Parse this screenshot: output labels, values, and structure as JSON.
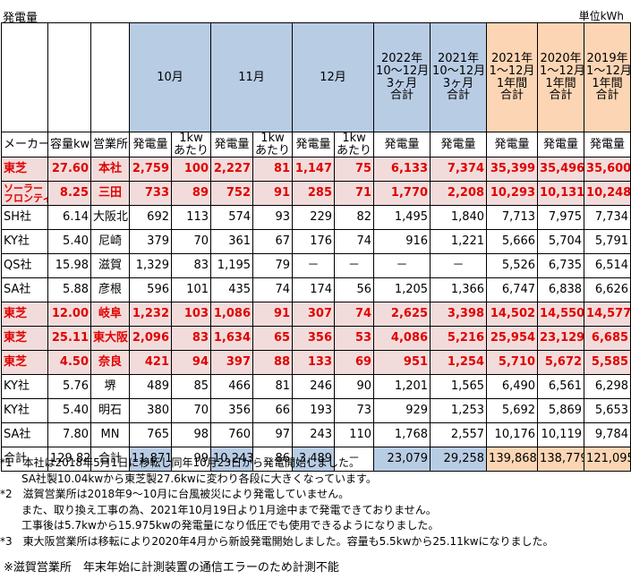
{
  "title": "発電量",
  "unit": "単位kWh",
  "header": {
    "col_oct": "10月",
    "col_nov": "11月",
    "col_dec": "12月",
    "col_2022q": [
      "2022年",
      "10～12月",
      "3ヶ月",
      "合計"
    ],
    "col_2021q": [
      "2021年",
      "10～12月",
      "3ヶ月",
      "合計"
    ],
    "col_2021y": [
      "2021年",
      "1～12月",
      "1年間",
      "合計"
    ],
    "col_2020y": [
      "2020年",
      "1～12月",
      "1年間",
      "合計"
    ],
    "col_2019y": [
      "2019年",
      "1～12月",
      "1年間",
      "合計"
    ]
  },
  "sub": {
    "maker": "メーカー",
    "capacity": "容量kw",
    "office": "営業所",
    "gen": "発電量",
    "per_kw": [
      "1kw",
      "あたり"
    ]
  },
  "rows": [
    {
      "maker": "東芝",
      "maker2": "",
      "capacity": "27.60",
      "office": "本社",
      "oct": "2,759",
      "oct_kw": "100",
      "nov": "2,227",
      "nov_kw": "81",
      "dec": "1,147",
      "dec_kw": "75",
      "q2022": "6,133",
      "q2021": "7,374",
      "y2021": "35,399",
      "y2020": "35,496",
      "y2019": "35,600",
      "hl": true
    },
    {
      "maker": "ソーラー",
      "maker2": "フロンティア",
      "capacity": "8.25",
      "office": "三田",
      "oct": "733",
      "oct_kw": "89",
      "nov": "752",
      "nov_kw": "91",
      "dec": "285",
      "dec_kw": "71",
      "q2022": "1,770",
      "q2021": "2,208",
      "y2021": "10,293",
      "y2020": "10,131",
      "y2019": "10,248",
      "hl": true
    },
    {
      "maker": "SH社",
      "maker2": "",
      "capacity": "6.14",
      "office": "大阪北",
      "oct": "692",
      "oct_kw": "113",
      "nov": "574",
      "nov_kw": "93",
      "dec": "229",
      "dec_kw": "82",
      "q2022": "1,495",
      "q2021": "1,840",
      "y2021": "7,713",
      "y2020": "7,975",
      "y2019": "7,734",
      "hl": false
    },
    {
      "maker": "KY社",
      "maker2": "",
      "capacity": "5.40",
      "office": "尼崎",
      "oct": "379",
      "oct_kw": "70",
      "nov": "361",
      "nov_kw": "67",
      "dec": "176",
      "dec_kw": "74",
      "q2022": "916",
      "q2021": "1,221",
      "y2021": "5,666",
      "y2020": "5,704",
      "y2019": "5,791",
      "hl": false
    },
    {
      "maker": "QS社",
      "maker2": "",
      "capacity": "15.98",
      "office": "滋賀",
      "oct": "1,329",
      "oct_kw": "83",
      "nov": "1,195",
      "nov_kw": "79",
      "dec": "－",
      "dec_kw": "－",
      "q2022": "－",
      "q2021": "－",
      "y2021": "5,526",
      "y2020": "6,735",
      "y2019": "6,514",
      "hl": false
    },
    {
      "maker": "SA社",
      "maker2": "",
      "capacity": "5.88",
      "office": "彦根",
      "oct": "596",
      "oct_kw": "101",
      "nov": "435",
      "nov_kw": "74",
      "dec": "174",
      "dec_kw": "56",
      "q2022": "1,205",
      "q2021": "1,366",
      "y2021": "6,747",
      "y2020": "6,838",
      "y2019": "6,626",
      "hl": false
    },
    {
      "maker": "東芝",
      "maker2": "",
      "capacity": "12.00",
      "office": "岐阜",
      "oct": "1,232",
      "oct_kw": "103",
      "nov": "1,086",
      "nov_kw": "91",
      "dec": "307",
      "dec_kw": "74",
      "q2022": "2,625",
      "q2021": "3,398",
      "y2021": "14,502",
      "y2020": "14,550",
      "y2019": "14,577",
      "hl": true
    },
    {
      "maker": "東芝",
      "maker2": "",
      "capacity": "25.11",
      "office": "東大阪",
      "oct": "2,096",
      "oct_kw": "83",
      "nov": "1,634",
      "nov_kw": "65",
      "dec": "356",
      "dec_kw": "53",
      "q2022": "4,086",
      "q2021": "5,216",
      "y2021": "25,954",
      "y2020": "23,129",
      "y2019": "6,685",
      "hl": true
    },
    {
      "maker": "東芝",
      "maker2": "",
      "capacity": "4.50",
      "office": "奈良",
      "oct": "421",
      "oct_kw": "94",
      "nov": "397",
      "nov_kw": "88",
      "dec": "133",
      "dec_kw": "69",
      "q2022": "951",
      "q2021": "1,254",
      "y2021": "5,710",
      "y2020": "5,672",
      "y2019": "5,585",
      "hl": true
    },
    {
      "maker": "KY社",
      "maker2": "",
      "capacity": "5.76",
      "office": "堺",
      "oct": "489",
      "oct_kw": "85",
      "nov": "466",
      "nov_kw": "81",
      "dec": "246",
      "dec_kw": "90",
      "q2022": "1,201",
      "q2021": "1,565",
      "y2021": "6,490",
      "y2020": "6,561",
      "y2019": "6,298",
      "hl": false
    },
    {
      "maker": "KY社",
      "maker2": "",
      "capacity": "5.40",
      "office": "明石",
      "oct": "380",
      "oct_kw": "70",
      "nov": "356",
      "nov_kw": "66",
      "dec": "193",
      "dec_kw": "73",
      "q2022": "929",
      "q2021": "1,253",
      "y2021": "5,692",
      "y2020": "5,869",
      "y2019": "5,653",
      "hl": false
    },
    {
      "maker": "SA社",
      "maker2": "",
      "capacity": "7.80",
      "office": "MN",
      "oct": "765",
      "oct_kw": "98",
      "nov": "760",
      "nov_kw": "97",
      "dec": "243",
      "dec_kw": "110",
      "q2022": "1,768",
      "q2021": "2,557",
      "y2021": "10,176",
      "y2020": "10,119",
      "y2019": "9,784",
      "hl": false
    }
  ],
  "total": {
    "maker": "合計",
    "capacity": "129.82",
    "office": "合計",
    "oct": "11,871",
    "oct_kw": "99",
    "nov": "10,243",
    "nov_kw": "86",
    "dec": "3,489",
    "dec_kw": "－",
    "q2022": "23,079",
    "q2021": "29,258",
    "y2021": "139,868",
    "y2020": "138,779",
    "y2019": "121,095"
  },
  "notes": [
    "*1　本社は2018年5月1日に移転し同年10月23日から発電開始しました。",
    "　　SA社製10.04kwから東芝製27.6kwに変わり各段に大きくなっています。",
    "*2　滋賀営業所は2018年9～10月に台風被災により発電していません。",
    "　　また、取り換え工事の為、2021年10月19日より1月途中まで発電できておりません。",
    "　　工事後は5.7kwから15.975kwの発電量になり低圧でも使用できるようになりました。",
    "*3　東大阪営業所は移転により2020年4月から新設発電開始しました。容量も5.5kwから25.11kwになりました。"
  ],
  "bottom_note": "※滋賀営業所　年末年始に計測装置の通信エラーのため計測不能",
  "colors": {
    "blue": "#b8cce4",
    "peach": "#fcd5b4",
    "pink": "#f2dcdb",
    "red": "#e00000"
  }
}
